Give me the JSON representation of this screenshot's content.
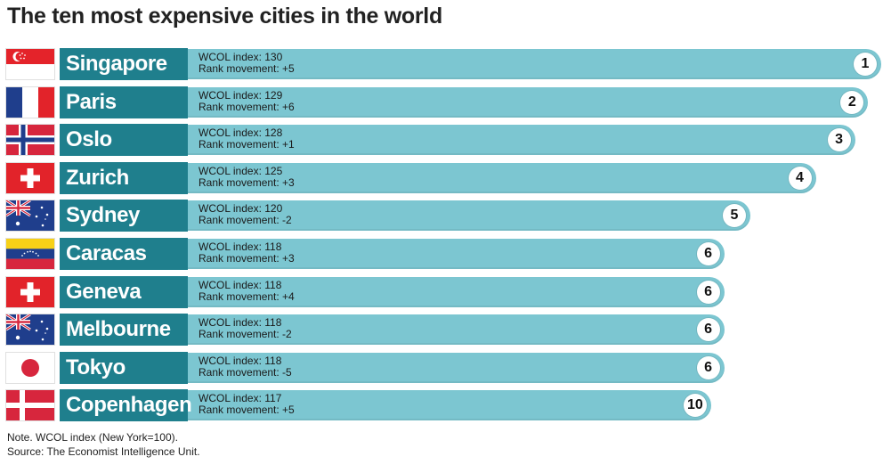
{
  "chart_data": {
    "type": "bar",
    "orientation": "horizontal",
    "title": "The ten most expensive cities in the world",
    "index_label": "WCOL index",
    "movement_label": "Rank movement",
    "categories": [
      "Singapore",
      "Paris",
      "Oslo",
      "Zurich",
      "Sydney",
      "Caracas",
      "Geneva",
      "Melbourne",
      "Tokyo",
      "Copenhagen"
    ],
    "values": [
      130,
      129,
      128,
      125,
      120,
      118,
      118,
      118,
      118,
      117
    ],
    "rank_movement": [
      "+5",
      "+6",
      "+1",
      "+3",
      "-2",
      "+3",
      "+4",
      "-2",
      "-5",
      "+5"
    ],
    "ranks": [
      1,
      2,
      3,
      4,
      5,
      6,
      6,
      6,
      6,
      10
    ],
    "flags": [
      "singapore-flag",
      "france-flag",
      "norway-flag",
      "switzerland-flag",
      "australia-flag",
      "venezuela-flag",
      "switzerland-flag",
      "australia-flag",
      "japan-flag",
      "denmark-flag"
    ],
    "note": "Note. WCOL index (New York=100).",
    "source": "Source: The Economist Intelligence Unit.",
    "colors": {
      "bar": "#7cc6d1",
      "label_box": "#1f7f8d",
      "label_text": "#ffffff"
    }
  }
}
